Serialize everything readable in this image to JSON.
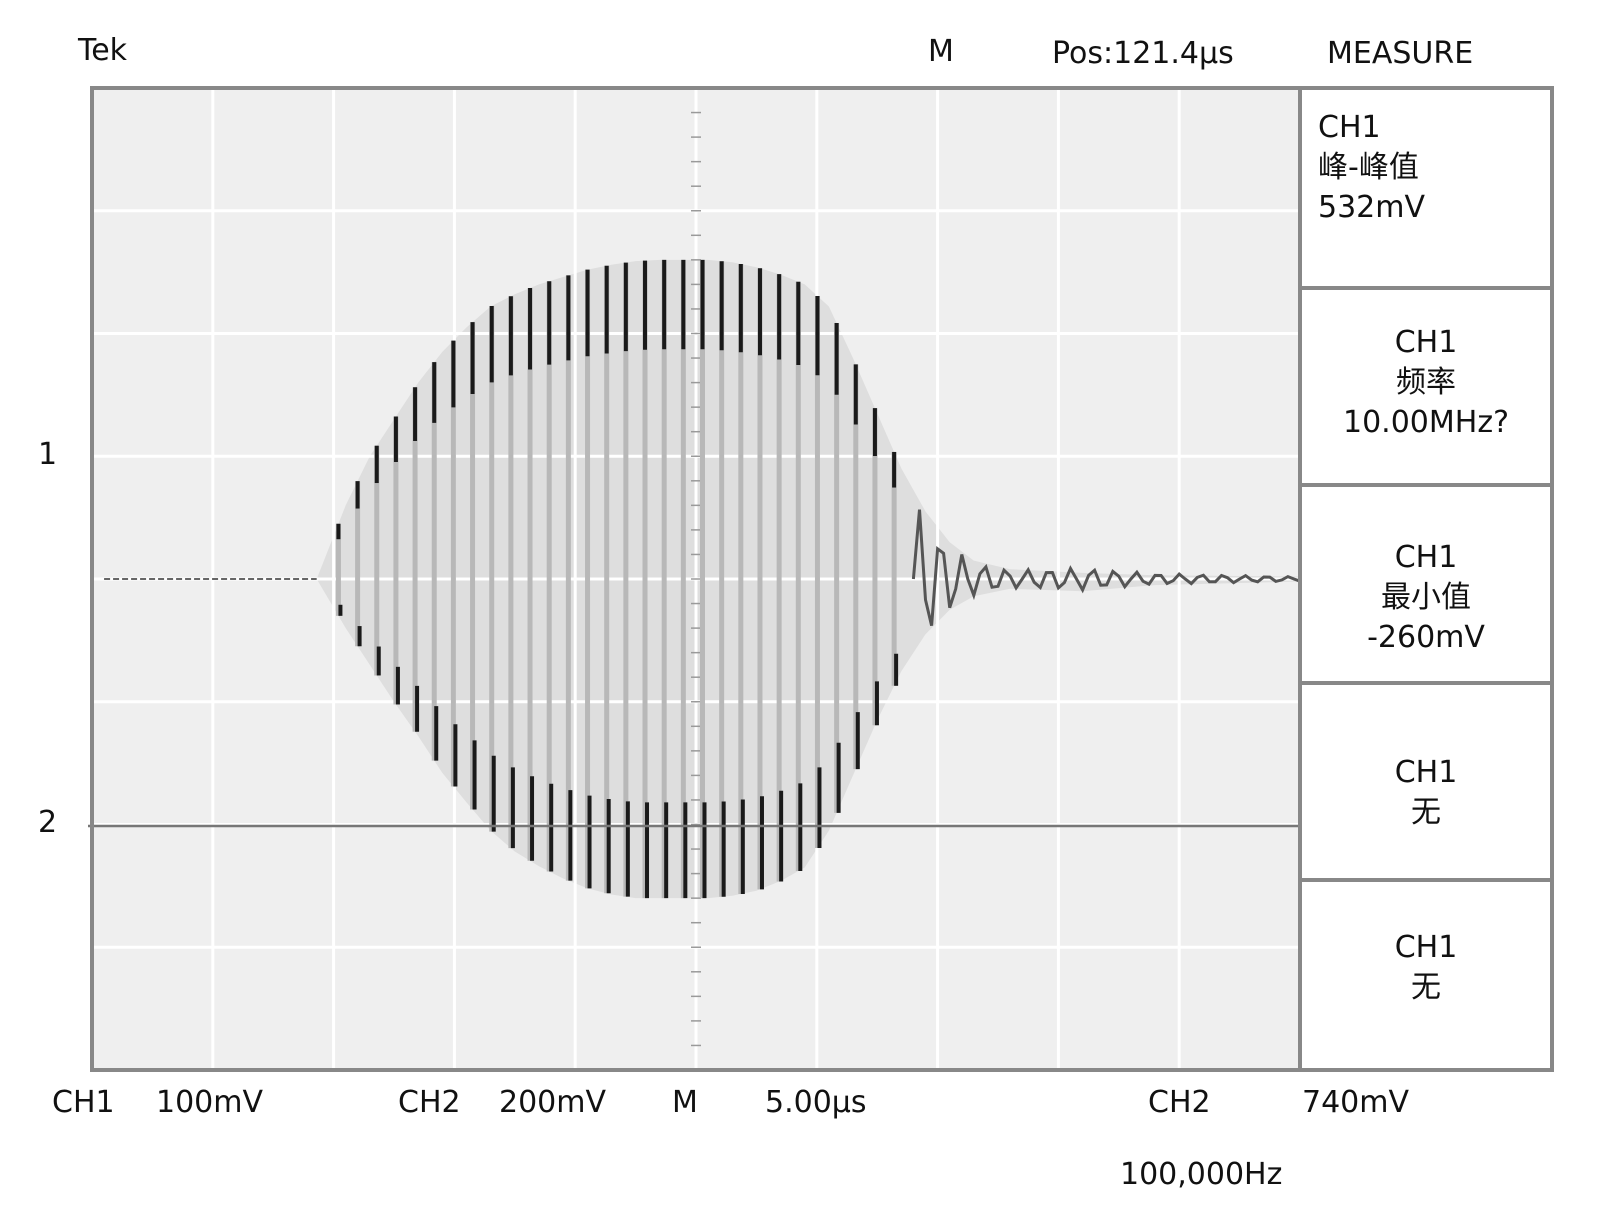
{
  "header": {
    "brand": "Tek",
    "mode": "M",
    "position": "Pos:121.4µs",
    "menu_title": "MEASURE"
  },
  "channel_markers": {
    "ch1": "1",
    "ch2": "2"
  },
  "measure_panel": [
    {
      "channel": "CH1",
      "name": "峰-峰值",
      "value": "532mV"
    },
    {
      "channel": "CH1",
      "name": "频率",
      "value": "10.00MHz?"
    },
    {
      "channel": "CH1",
      "name": "最小值",
      "value": "-260mV"
    },
    {
      "channel": "CH1",
      "name": "无",
      "value": ""
    },
    {
      "channel": "CH1",
      "name": "无",
      "value": ""
    }
  ],
  "footer": {
    "ch1_label": "CH1",
    "ch1_scale": "100mV",
    "ch2_label": "CH2",
    "ch2_scale": "200mV",
    "time_label": "M",
    "time_scale": "5.00µs",
    "trigger_label": "CH2",
    "trigger_level": "740mV",
    "trigger_freq": "100,000Hz"
  },
  "colors": {
    "screen_bg": "#efefef",
    "grid": "#ffffff",
    "frame": "#888888",
    "trace": "#1a1a1a",
    "envelope": "#dedede"
  },
  "chart_data": {
    "type": "line",
    "title": "",
    "xlabel": "",
    "ylabel": "",
    "grid": true,
    "x_divisions": 10,
    "y_divisions": 8,
    "xlim": [
      0,
      50
    ],
    "x_unit": "µs",
    "series": [
      {
        "channel": "CH1",
        "description": "RF burst, ~10 MHz carrier with rounded envelope",
        "ylim": [
          -400,
          400
        ],
        "y_unit": "mV",
        "carrier_cycles_drawn": 30,
        "burst_start_us": 9.3,
        "burst_peak_us": 25.5,
        "burst_end_us": 44,
        "envelope_max_mV": [
          [
            9.3,
            0
          ],
          [
            10.5,
            60
          ],
          [
            11.5,
            100
          ],
          [
            12.5,
            130
          ],
          [
            13.5,
            160
          ],
          [
            14.5,
            185
          ],
          [
            15.5,
            205
          ],
          [
            16.5,
            222
          ],
          [
            17.5,
            232
          ],
          [
            18.5,
            240
          ],
          [
            19.5,
            246
          ],
          [
            20.5,
            252
          ],
          [
            21.5,
            256
          ],
          [
            22.5,
            259
          ],
          [
            23.5,
            260
          ],
          [
            24.5,
            260
          ],
          [
            25.5,
            260
          ],
          [
            26.5,
            258
          ],
          [
            27.5,
            254
          ],
          [
            28.5,
            248
          ],
          [
            29.5,
            240
          ],
          [
            30.5,
            222
          ],
          [
            31.5,
            180
          ],
          [
            32.5,
            135
          ],
          [
            33.5,
            90
          ],
          [
            34.5,
            55
          ],
          [
            35.5,
            30
          ],
          [
            36.5,
            15
          ],
          [
            38,
            8
          ],
          [
            41,
            5
          ],
          [
            44,
            3
          ],
          [
            50,
            2
          ]
        ],
        "envelope_min_mV": [
          [
            9.3,
            0
          ],
          [
            10.5,
            -40
          ],
          [
            11.5,
            -70
          ],
          [
            12.5,
            -100
          ],
          [
            13.5,
            -128
          ],
          [
            14.5,
            -158
          ],
          [
            15.5,
            -182
          ],
          [
            16.5,
            -205
          ],
          [
            17.5,
            -222
          ],
          [
            18.5,
            -234
          ],
          [
            19.5,
            -244
          ],
          [
            20.5,
            -252
          ],
          [
            21.5,
            -257
          ],
          [
            22.5,
            -260
          ],
          [
            23.5,
            -260
          ],
          [
            24.5,
            -260
          ],
          [
            25.5,
            -260
          ],
          [
            26.5,
            -258
          ],
          [
            27.5,
            -254
          ],
          [
            28.5,
            -246
          ],
          [
            29.5,
            -235
          ],
          [
            30.5,
            -205
          ],
          [
            31.5,
            -160
          ],
          [
            32.5,
            -115
          ],
          [
            33.5,
            -75
          ],
          [
            34.5,
            -45
          ],
          [
            35.5,
            -25
          ],
          [
            36.5,
            -14
          ],
          [
            38,
            -8
          ],
          [
            41,
            -10
          ],
          [
            44,
            -5
          ],
          [
            50,
            -2
          ]
        ]
      },
      {
        "channel": "CH2",
        "description": "flat trace",
        "ylim": [
          -800,
          800
        ],
        "y_unit": "mV",
        "values_mV": [
          [
            0,
            0
          ],
          [
            50,
            0
          ]
        ]
      }
    ]
  }
}
